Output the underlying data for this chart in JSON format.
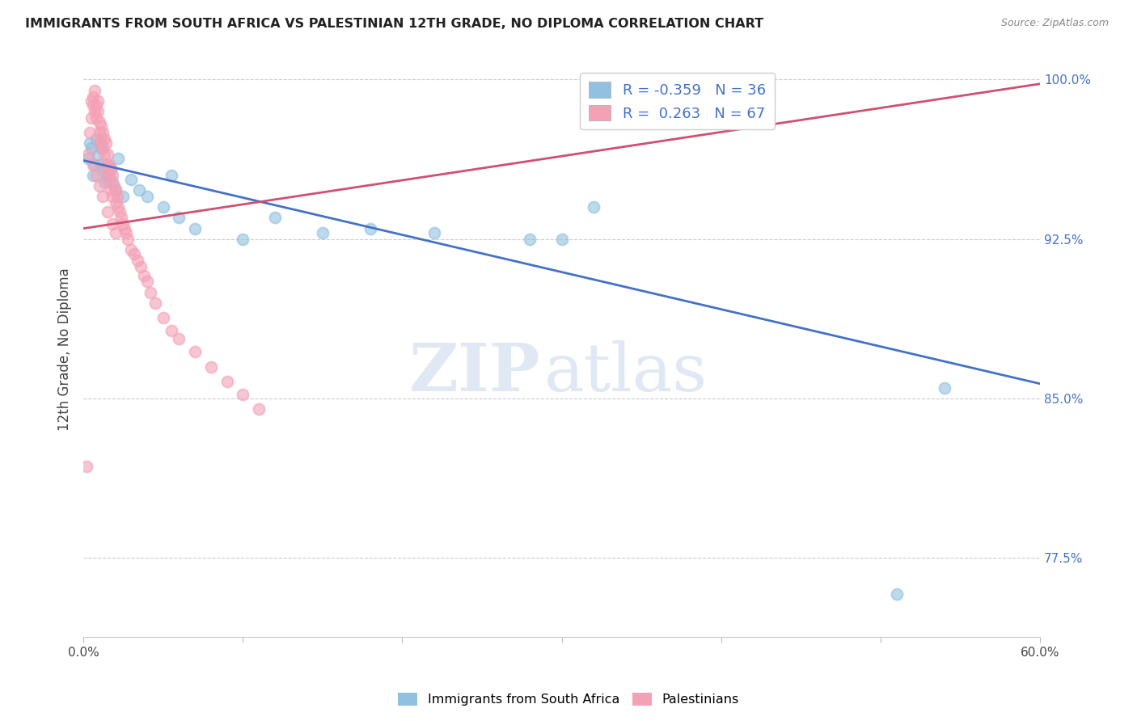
{
  "title": "IMMIGRANTS FROM SOUTH AFRICA VS PALESTINIAN 12TH GRADE, NO DIPLOMA CORRELATION CHART",
  "source": "Source: ZipAtlas.com",
  "ylabel": "12th Grade, No Diploma",
  "xlim": [
    0.0,
    0.6
  ],
  "ylim": [
    0.738,
    1.008
  ],
  "xticks": [
    0.0,
    0.1,
    0.2,
    0.3,
    0.4,
    0.5,
    0.6
  ],
  "xticklabels": [
    "0.0%",
    "",
    "",
    "",
    "",
    "",
    "60.0%"
  ],
  "yticks_right": [
    0.775,
    0.85,
    0.925,
    1.0
  ],
  "yticklabels_right": [
    "77.5%",
    "85.0%",
    "92.5%",
    "100.0%"
  ],
  "blue_R": -0.359,
  "blue_N": 36,
  "pink_R": 0.263,
  "pink_N": 67,
  "blue_color": "#92C0E0",
  "pink_color": "#F4A0B5",
  "blue_line_color": "#4472C4",
  "pink_line_color": "#D05070",
  "legend_label_blue": "Immigrants from South Africa",
  "legend_label_pink": "Palestinians",
  "blue_line_x0": 0.0,
  "blue_line_y0": 0.962,
  "blue_line_x1": 0.6,
  "blue_line_y1": 0.857,
  "pink_line_x0": 0.0,
  "pink_line_y0": 0.93,
  "pink_line_x1": 0.6,
  "pink_line_y1": 0.998,
  "blue_scatter_x": [
    0.003,
    0.004,
    0.005,
    0.006,
    0.007,
    0.008,
    0.009,
    0.01,
    0.011,
    0.012,
    0.013,
    0.014,
    0.015,
    0.016,
    0.017,
    0.018,
    0.02,
    0.022,
    0.025,
    0.03,
    0.035,
    0.04,
    0.05,
    0.055,
    0.06,
    0.07,
    0.1,
    0.12,
    0.15,
    0.18,
    0.22,
    0.28,
    0.3,
    0.32,
    0.51,
    0.54
  ],
  "blue_scatter_y": [
    0.963,
    0.97,
    0.968,
    0.955,
    0.96,
    0.972,
    0.965,
    0.96,
    0.968,
    0.958,
    0.952,
    0.955,
    0.96,
    0.955,
    0.958,
    0.952,
    0.948,
    0.963,
    0.945,
    0.953,
    0.948,
    0.945,
    0.94,
    0.955,
    0.935,
    0.93,
    0.925,
    0.935,
    0.928,
    0.93,
    0.928,
    0.925,
    0.925,
    0.94,
    0.758,
    0.855
  ],
  "pink_scatter_x": [
    0.002,
    0.003,
    0.004,
    0.005,
    0.005,
    0.006,
    0.006,
    0.007,
    0.007,
    0.008,
    0.008,
    0.009,
    0.009,
    0.01,
    0.01,
    0.01,
    0.011,
    0.011,
    0.012,
    0.012,
    0.013,
    0.013,
    0.014,
    0.014,
    0.015,
    0.015,
    0.015,
    0.016,
    0.016,
    0.017,
    0.017,
    0.018,
    0.018,
    0.019,
    0.02,
    0.02,
    0.021,
    0.022,
    0.023,
    0.024,
    0.025,
    0.026,
    0.027,
    0.028,
    0.03,
    0.032,
    0.034,
    0.036,
    0.038,
    0.04,
    0.042,
    0.045,
    0.05,
    0.055,
    0.06,
    0.07,
    0.08,
    0.09,
    0.1,
    0.11,
    0.006,
    0.008,
    0.01,
    0.012,
    0.015,
    0.018,
    0.02
  ],
  "pink_scatter_y": [
    0.818,
    0.965,
    0.975,
    0.99,
    0.982,
    0.988,
    0.992,
    0.985,
    0.995,
    0.988,
    0.982,
    0.985,
    0.99,
    0.975,
    0.98,
    0.97,
    0.978,
    0.972,
    0.968,
    0.975,
    0.972,
    0.965,
    0.97,
    0.96,
    0.965,
    0.958,
    0.955,
    0.96,
    0.952,
    0.958,
    0.948,
    0.955,
    0.945,
    0.95,
    0.948,
    0.942,
    0.945,
    0.94,
    0.938,
    0.935,
    0.932,
    0.93,
    0.928,
    0.925,
    0.92,
    0.918,
    0.915,
    0.912,
    0.908,
    0.905,
    0.9,
    0.895,
    0.888,
    0.882,
    0.878,
    0.872,
    0.865,
    0.858,
    0.852,
    0.845,
    0.96,
    0.955,
    0.95,
    0.945,
    0.938,
    0.932,
    0.928
  ],
  "watermark_zip": "ZIP",
  "watermark_atlas": "atlas",
  "background_color": "#FFFFFF"
}
